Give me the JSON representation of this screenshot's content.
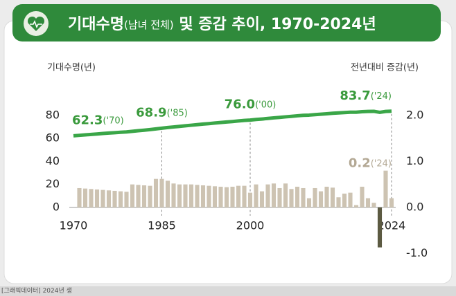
{
  "chart_data": {
    "type": "bar-line",
    "title_parts": [
      "기대수명",
      "(남녀 전체)",
      " 및 증감 추이, 1970-2024년"
    ],
    "y_label": "기대수명(년)",
    "y2_label": "전년대비 증감(년)",
    "x": [
      1970,
      1971,
      1972,
      1973,
      1974,
      1975,
      1976,
      1977,
      1978,
      1979,
      1980,
      1981,
      1982,
      1983,
      1984,
      1985,
      1986,
      1987,
      1988,
      1989,
      1990,
      1991,
      1992,
      1993,
      1994,
      1995,
      1996,
      1997,
      1998,
      1999,
      2000,
      2001,
      2002,
      2003,
      2004,
      2005,
      2006,
      2007,
      2008,
      2009,
      2010,
      2011,
      2012,
      2013,
      2014,
      2015,
      2016,
      2017,
      2018,
      2019,
      2020,
      2021,
      2022,
      2023,
      2024
    ],
    "xlim": [
      1970,
      2024
    ],
    "xticks": [
      1970,
      1985,
      2000,
      2024
    ],
    "ylim": [
      -44,
      92
    ],
    "yticks": [
      0,
      20,
      40,
      60,
      80
    ],
    "y2lim": [
      -1.1,
      2.3
    ],
    "y2ticks": [
      {
        "value": -1,
        "label": "-1.0"
      },
      {
        "value": 0,
        "label": "0.0"
      },
      {
        "value": 1,
        "label": "1.0"
      },
      {
        "value": 2,
        "label": "2.0"
      }
    ],
    "series": [
      {
        "name": "기대수명",
        "kind": "line",
        "color": "#3aa648",
        "values": [
          62.3,
          62.7,
          63.1,
          63.5,
          63.9,
          64.3,
          64.7,
          65.0,
          65.4,
          65.7,
          66.2,
          66.7,
          67.2,
          67.7,
          68.3,
          68.9,
          69.5,
          70.0,
          70.5,
          71.0,
          71.5,
          72.0,
          72.5,
          72.9,
          73.4,
          73.9,
          74.3,
          74.7,
          75.2,
          75.7,
          76.0,
          76.5,
          76.9,
          77.4,
          77.9,
          78.3,
          78.8,
          79.2,
          79.7,
          80.1,
          80.3,
          80.7,
          81.1,
          81.5,
          81.9,
          82.2,
          82.5,
          82.8,
          82.8,
          83.3,
          83.5,
          83.6,
          82.7,
          83.5,
          83.7
        ],
        "annotations": [
          {
            "x": 1970,
            "label": "62.3",
            "suffix": "('70)"
          },
          {
            "x": 1985,
            "label": "68.9",
            "suffix": "('85)"
          },
          {
            "x": 2000,
            "label": "76.0",
            "suffix": "('00)"
          },
          {
            "x": 2024,
            "label": "83.7",
            "suffix": "('24)"
          }
        ],
        "annotation_color": "#3a9a3c"
      },
      {
        "name": "전년대비 증감",
        "kind": "bar",
        "axis": "y2",
        "color": "#cdc3b2",
        "negative_color": "#5c5a42",
        "values": [
          null,
          0.42,
          0.41,
          0.4,
          0.39,
          0.38,
          0.37,
          0.36,
          0.35,
          0.34,
          0.5,
          0.49,
          0.48,
          0.47,
          0.62,
          0.62,
          0.58,
          0.52,
          0.5,
          0.5,
          0.5,
          0.49,
          0.48,
          0.47,
          0.46,
          0.45,
          0.44,
          0.45,
          0.47,
          0.47,
          0.32,
          0.5,
          0.35,
          0.5,
          0.52,
          0.42,
          0.52,
          0.4,
          0.45,
          0.42,
          0.2,
          0.42,
          0.35,
          0.45,
          0.43,
          0.22,
          0.3,
          0.32,
          0.05,
          0.45,
          0.2,
          0.1,
          -0.87,
          0.8,
          0.2
        ],
        "annotations": [
          {
            "x": 2024,
            "label": "0.2",
            "suffix": "('24)"
          }
        ],
        "annotation_color": "#b3a894"
      }
    ],
    "guides": [
      1985,
      2000,
      2024
    ]
  },
  "footer": {
    "text": "[그래픽데이터] 2024년 생"
  }
}
